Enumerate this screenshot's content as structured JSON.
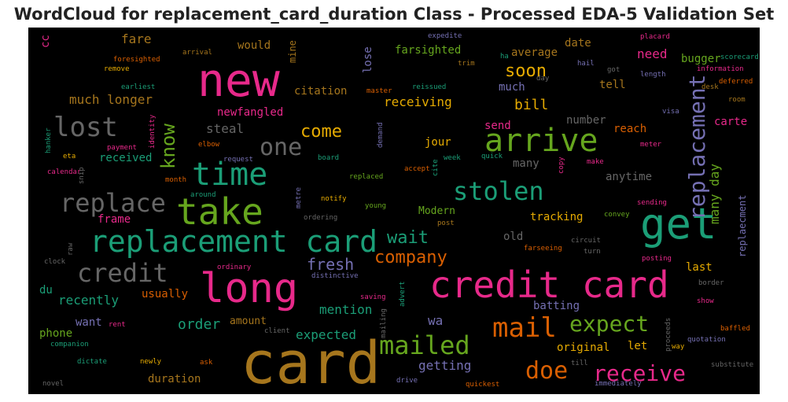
{
  "title": "WordCloud for replacement_card_duration Class - Processed EDA-5 Validation Set",
  "chart_data": {
    "type": "wordcloud",
    "background": "#000000",
    "palette": [
      "#1b9e77",
      "#d95f02",
      "#7570b3",
      "#e7298a",
      "#66a61e",
      "#e6ab02",
      "#a6761d",
      "#666666"
    ],
    "words": [
      {
        "text": "card",
        "color": "#a6761d"
      },
      {
        "text": "new",
        "color": "#e7298a"
      },
      {
        "text": "long",
        "color": "#e7298a"
      },
      {
        "text": "credit card",
        "color": "#e7298a"
      },
      {
        "text": "take",
        "color": "#66a61e"
      },
      {
        "text": "replacement card",
        "color": "#1b9e77"
      },
      {
        "text": "get",
        "color": "#1b9e77"
      },
      {
        "text": "time",
        "color": "#1b9e77"
      },
      {
        "text": "arrive",
        "color": "#66a61e"
      },
      {
        "text": "lost",
        "color": "#666666"
      },
      {
        "text": "replace",
        "color": "#666666"
      },
      {
        "text": "credit",
        "color": "#666666"
      },
      {
        "text": "stolen",
        "color": "#1b9e77"
      },
      {
        "text": "mailed",
        "color": "#66a61e"
      },
      {
        "text": "mail",
        "color": "#d95f02"
      },
      {
        "text": "expect",
        "color": "#66a61e"
      },
      {
        "text": "doe",
        "color": "#d95f02"
      },
      {
        "text": "receive",
        "color": "#e7298a"
      },
      {
        "text": "one",
        "color": "#666666"
      },
      {
        "text": "replacement",
        "color": "#7570b3"
      },
      {
        "text": "know",
        "color": "#66a61e"
      },
      {
        "text": "come",
        "color": "#e6ab02"
      },
      {
        "text": "soon",
        "color": "#e6ab02"
      },
      {
        "text": "wait",
        "color": "#1b9e77"
      },
      {
        "text": "company",
        "color": "#d95f02"
      },
      {
        "text": "fresh",
        "color": "#7570b3"
      },
      {
        "text": "order",
        "color": "#1b9e77"
      },
      {
        "text": "bill",
        "color": "#e6ab02"
      },
      {
        "text": "receiving",
        "color": "#e6ab02"
      },
      {
        "text": "much longer",
        "color": "#a6761d"
      },
      {
        "text": "many day",
        "color": "#66a61e"
      },
      {
        "text": "recently",
        "color": "#1b9e77"
      },
      {
        "text": "mention",
        "color": "#1b9e77"
      },
      {
        "text": "expected",
        "color": "#1b9e77"
      },
      {
        "text": "getting",
        "color": "#7570b3"
      },
      {
        "text": "wa",
        "color": "#7570b3"
      },
      {
        "text": "tracking",
        "color": "#e6ab02"
      },
      {
        "text": "need",
        "color": "#e7298a"
      },
      {
        "text": "fare",
        "color": "#a6761d"
      },
      {
        "text": "farsighted",
        "color": "#66a61e"
      },
      {
        "text": "average",
        "color": "#a6761d"
      },
      {
        "text": "would",
        "color": "#a6761d"
      },
      {
        "text": "citation",
        "color": "#a6761d"
      },
      {
        "text": "newfangled",
        "color": "#e7298a"
      },
      {
        "text": "steal",
        "color": "#666666"
      },
      {
        "text": "received",
        "color": "#1b9e77"
      },
      {
        "text": "frame",
        "color": "#e7298a"
      },
      {
        "text": "jour",
        "color": "#e6ab02"
      },
      {
        "text": "send",
        "color": "#e7298a"
      },
      {
        "text": "much",
        "color": "#7570b3"
      },
      {
        "text": "lose",
        "color": "#7570b3"
      },
      {
        "text": "tell",
        "color": "#a6761d"
      },
      {
        "text": "number",
        "color": "#666666"
      },
      {
        "text": "reach",
        "color": "#d95f02"
      },
      {
        "text": "carte",
        "color": "#e7298a"
      },
      {
        "text": "anytime",
        "color": "#666666"
      },
      {
        "text": "many",
        "color": "#666666"
      },
      {
        "text": "Modern",
        "color": "#66a61e"
      },
      {
        "text": "old",
        "color": "#666666"
      },
      {
        "text": "last",
        "color": "#e6ab02"
      },
      {
        "text": "du",
        "color": "#1b9e77"
      },
      {
        "text": "usually",
        "color": "#d95f02"
      },
      {
        "text": "want",
        "color": "#7570b3"
      },
      {
        "text": "phone",
        "color": "#66a61e"
      },
      {
        "text": "amount",
        "color": "#a6761d"
      },
      {
        "text": "batting",
        "color": "#7570b3"
      },
      {
        "text": "original",
        "color": "#e6ab02"
      },
      {
        "text": "let",
        "color": "#e6ab02"
      },
      {
        "text": "duration",
        "color": "#a6761d"
      },
      {
        "text": "date",
        "color": "#a6761d"
      },
      {
        "text": "bugger",
        "color": "#66a61e"
      },
      {
        "text": "replaecment",
        "color": "#7570b3"
      },
      {
        "text": "cc",
        "color": "#e7298a"
      },
      {
        "text": "mine",
        "color": "#a6761d"
      },
      {
        "text": "expedite",
        "color": "#7570b3"
      },
      {
        "text": "placard",
        "color": "#e7298a"
      },
      {
        "text": "foresighted",
        "color": "#d95f02"
      },
      {
        "text": "arrival",
        "color": "#a6761d"
      },
      {
        "text": "remove",
        "color": "#e6ab02"
      },
      {
        "text": "earliest",
        "color": "#1b9e77"
      },
      {
        "text": "trim",
        "color": "#a6761d"
      },
      {
        "text": "ha",
        "color": "#1b9e77"
      },
      {
        "text": "hail",
        "color": "#7570b3"
      },
      {
        "text": "got",
        "color": "#666666"
      },
      {
        "text": "scorecard",
        "color": "#1b9e77"
      },
      {
        "text": "information",
        "color": "#e7298a"
      },
      {
        "text": "length",
        "color": "#7570b3"
      },
      {
        "text": "deferred",
        "color": "#d95f02"
      },
      {
        "text": "desk",
        "color": "#a6761d"
      },
      {
        "text": "room",
        "color": "#a6761d"
      },
      {
        "text": "master",
        "color": "#d95f02"
      },
      {
        "text": "reissued",
        "color": "#1b9e77"
      },
      {
        "text": "day",
        "color": "#666666"
      },
      {
        "text": "visa",
        "color": "#7570b3"
      },
      {
        "text": "hanker",
        "color": "#1b9e77"
      },
      {
        "text": "eta",
        "color": "#e6ab02"
      },
      {
        "text": "payment",
        "color": "#e7298a"
      },
      {
        "text": "identity",
        "color": "#e7298a"
      },
      {
        "text": "elbow",
        "color": "#d95f02"
      },
      {
        "text": "calendar",
        "color": "#e7298a"
      },
      {
        "text": "snip",
        "color": "#666666"
      },
      {
        "text": "request",
        "color": "#7570b3"
      },
      {
        "text": "board",
        "color": "#1b9e77"
      },
      {
        "text": "demand",
        "color": "#7570b3"
      },
      {
        "text": "quick",
        "color": "#1b9e77"
      },
      {
        "text": "week",
        "color": "#1b9e77"
      },
      {
        "text": "cite",
        "color": "#1b9e77"
      },
      {
        "text": "copy",
        "color": "#e7298a"
      },
      {
        "text": "make",
        "color": "#e7298a"
      },
      {
        "text": "meter",
        "color": "#e7298a"
      },
      {
        "text": "month",
        "color": "#d95f02"
      },
      {
        "text": "replaced",
        "color": "#66a61e"
      },
      {
        "text": "accept",
        "color": "#d95f02"
      },
      {
        "text": "around",
        "color": "#1b9e77"
      },
      {
        "text": "metre",
        "color": "#7570b3"
      },
      {
        "text": "notify",
        "color": "#e6ab02"
      },
      {
        "text": "young",
        "color": "#66a61e"
      },
      {
        "text": "sending",
        "color": "#e7298a"
      },
      {
        "text": "ordering",
        "color": "#666666"
      },
      {
        "text": "convey",
        "color": "#66a61e"
      },
      {
        "text": "post",
        "color": "#a6761d"
      },
      {
        "text": "circuit",
        "color": "#666666"
      },
      {
        "text": "raw",
        "color": "#666666"
      },
      {
        "text": "farseeing",
        "color": "#d95f02"
      },
      {
        "text": "turn",
        "color": "#666666"
      },
      {
        "text": "clock",
        "color": "#666666"
      },
      {
        "text": "posting",
        "color": "#e7298a"
      },
      {
        "text": "ordinary",
        "color": "#e7298a"
      },
      {
        "text": "distinctive",
        "color": "#7570b3"
      },
      {
        "text": "border",
        "color": "#666666"
      },
      {
        "text": "advert",
        "color": "#1b9e77"
      },
      {
        "text": "saving",
        "color": "#e7298a"
      },
      {
        "text": "show",
        "color": "#e7298a"
      },
      {
        "text": "rent",
        "color": "#e7298a"
      },
      {
        "text": "client",
        "color": "#666666"
      },
      {
        "text": "mailing",
        "color": "#666666"
      },
      {
        "text": "baffled",
        "color": "#d95f02"
      },
      {
        "text": "companion",
        "color": "#1b9e77"
      },
      {
        "text": "proceeds",
        "color": "#666666"
      },
      {
        "text": "way",
        "color": "#e6ab02"
      },
      {
        "text": "quotation",
        "color": "#7570b3"
      },
      {
        "text": "dictate",
        "color": "#1b9e77"
      },
      {
        "text": "newly",
        "color": "#e6ab02"
      },
      {
        "text": "ask",
        "color": "#d95f02"
      },
      {
        "text": "till",
        "color": "#666666"
      },
      {
        "text": "substitute",
        "color": "#666666"
      },
      {
        "text": "drive",
        "color": "#7570b3"
      },
      {
        "text": "immediately",
        "color": "#7570b3"
      },
      {
        "text": "novel",
        "color": "#666666"
      },
      {
        "text": "quickest",
        "color": "#d95f02"
      }
    ]
  }
}
